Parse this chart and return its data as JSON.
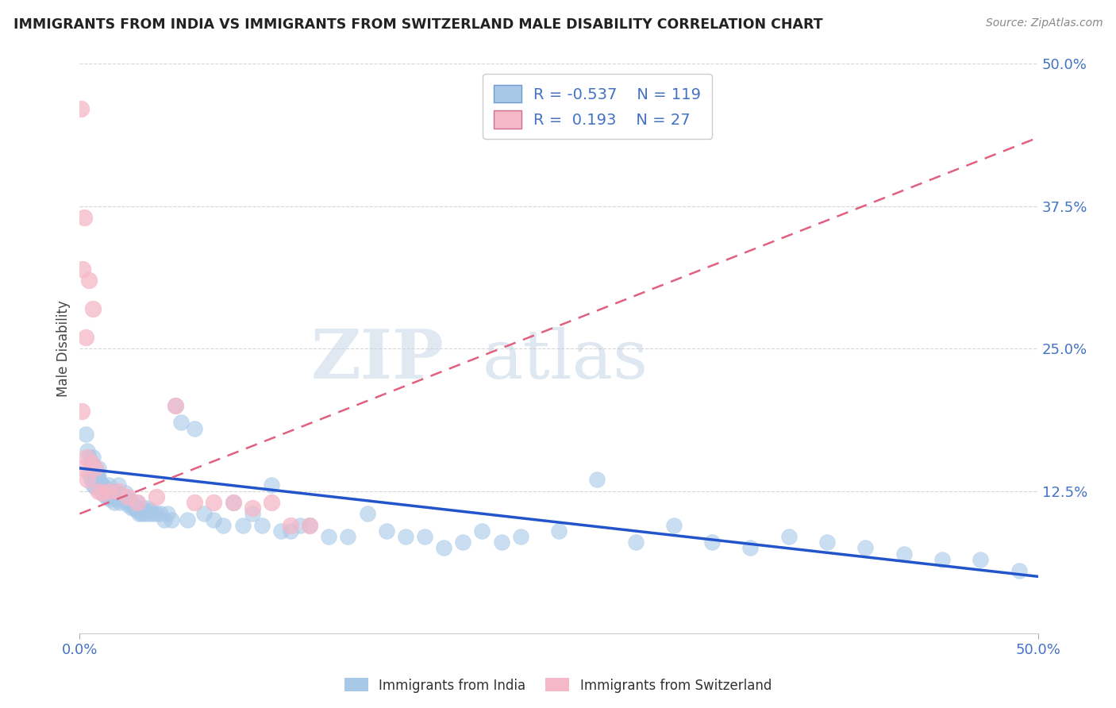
{
  "title": "IMMIGRANTS FROM INDIA VS IMMIGRANTS FROM SWITZERLAND MALE DISABILITY CORRELATION CHART",
  "source": "Source: ZipAtlas.com",
  "ylabel": "Male Disability",
  "x_min": 0.0,
  "x_max": 50.0,
  "y_min": 0.0,
  "y_max": 50.0,
  "y_ticks": [
    12.5,
    25.0,
    37.5,
    50.0
  ],
  "india_color": "#a8c8e8",
  "india_color_line": "#2255cc",
  "switzerland_color": "#f5b8c8",
  "switzerland_color_line": "#e06080",
  "india_R": -0.537,
  "india_N": 119,
  "switzerland_R": 0.193,
  "switzerland_N": 27,
  "watermark_zip": "ZIP",
  "watermark_atlas": "atlas",
  "background_color": "#ffffff",
  "grid_color": "#cccccc",
  "title_color": "#222222",
  "axis_label_color": "#4472c4",
  "india_scatter_x": [
    0.3,
    0.4,
    0.5,
    0.6,
    0.7,
    0.7,
    0.8,
    0.8,
    0.9,
    0.9,
    1.0,
    1.0,
    1.0,
    1.1,
    1.1,
    1.2,
    1.2,
    1.3,
    1.3,
    1.4,
    1.4,
    1.5,
    1.5,
    1.6,
    1.7,
    1.8,
    1.9,
    2.0,
    2.1,
    2.2,
    2.3,
    2.4,
    2.5,
    2.6,
    2.7,
    2.8,
    2.9,
    3.0,
    3.1,
    3.2,
    3.3,
    3.4,
    3.5,
    3.6,
    3.7,
    3.8,
    4.0,
    4.2,
    4.4,
    4.6,
    4.8,
    5.0,
    5.3,
    5.6,
    6.0,
    6.5,
    7.0,
    7.5,
    8.0,
    8.5,
    9.0,
    9.5,
    10.0,
    10.5,
    11.0,
    11.5,
    12.0,
    13.0,
    14.0,
    15.0,
    16.0,
    17.0,
    18.0,
    19.0,
    20.0,
    21.0,
    22.0,
    23.0,
    25.0,
    27.0,
    29.0,
    31.0,
    33.0,
    35.0,
    37.0,
    39.0,
    41.0,
    43.0,
    45.0,
    47.0,
    49.0,
    0.5,
    0.6,
    0.7,
    0.8,
    0.9,
    1.0,
    1.1,
    1.2,
    1.3,
    1.4,
    1.5,
    1.6,
    1.7,
    1.8,
    1.9,
    2.0,
    2.1,
    2.2,
    2.3,
    2.4,
    2.5,
    2.6,
    2.7,
    2.8,
    2.9,
    3.0,
    3.1,
    3.2
  ],
  "india_scatter_y": [
    17.5,
    16.0,
    15.5,
    15.0,
    14.8,
    15.5,
    14.0,
    13.5,
    14.2,
    13.8,
    14.5,
    13.0,
    13.5,
    13.2,
    12.8,
    13.0,
    12.5,
    12.8,
    12.3,
    12.5,
    12.0,
    13.0,
    12.0,
    12.5,
    12.5,
    12.5,
    12.0,
    13.0,
    12.0,
    12.0,
    11.8,
    12.0,
    11.5,
    11.8,
    11.5,
    11.2,
    11.0,
    11.5,
    11.0,
    10.8,
    11.0,
    10.5,
    11.0,
    10.5,
    10.8,
    10.5,
    10.5,
    10.5,
    10.0,
    10.5,
    10.0,
    20.0,
    18.5,
    10.0,
    18.0,
    10.5,
    10.0,
    9.5,
    11.5,
    9.5,
    10.5,
    9.5,
    13.0,
    9.0,
    9.0,
    9.5,
    9.5,
    8.5,
    8.5,
    10.5,
    9.0,
    8.5,
    8.5,
    7.5,
    8.0,
    9.0,
    8.0,
    8.5,
    9.0,
    13.5,
    8.0,
    9.5,
    8.0,
    7.5,
    8.5,
    8.0,
    7.5,
    7.0,
    6.5,
    6.5,
    5.5,
    14.0,
    13.5,
    13.0,
    12.8,
    13.5,
    13.8,
    12.6,
    12.3,
    12.1,
    12.5,
    12.3,
    11.8,
    12.1,
    11.5,
    12.3,
    11.8,
    11.5,
    12.0,
    11.8,
    12.3,
    11.3,
    11.6,
    11.0,
    11.2,
    11.0,
    10.8,
    10.5,
    10.5
  ],
  "switzerland_scatter_x": [
    0.05,
    0.1,
    0.15,
    0.2,
    0.25,
    0.3,
    0.35,
    0.4,
    0.5,
    0.6,
    0.7,
    0.8,
    1.0,
    1.2,
    1.5,
    2.0,
    2.5,
    3.0,
    4.0,
    5.0,
    6.0,
    7.0,
    8.0,
    9.0,
    10.0,
    11.0,
    12.0
  ],
  "switzerland_scatter_y": [
    46.0,
    19.5,
    32.0,
    14.5,
    36.5,
    26.0,
    15.5,
    13.5,
    31.0,
    15.0,
    28.5,
    14.5,
    12.5,
    12.3,
    12.5,
    12.5,
    12.0,
    11.5,
    12.0,
    20.0,
    11.5,
    11.5,
    11.5,
    11.0,
    11.5,
    9.5,
    9.5
  ],
  "india_trend_x0": 0.0,
  "india_trend_x1": 50.0,
  "india_trend_y0": 14.5,
  "india_trend_y1": 5.0,
  "switzerland_trend_x0": 0.0,
  "switzerland_trend_x1": 50.0,
  "switzerland_trend_y0": 10.5,
  "switzerland_trend_y1": 43.5,
  "legend_india": "Immigrants from India",
  "legend_switzerland": "Immigrants from Switzerland"
}
